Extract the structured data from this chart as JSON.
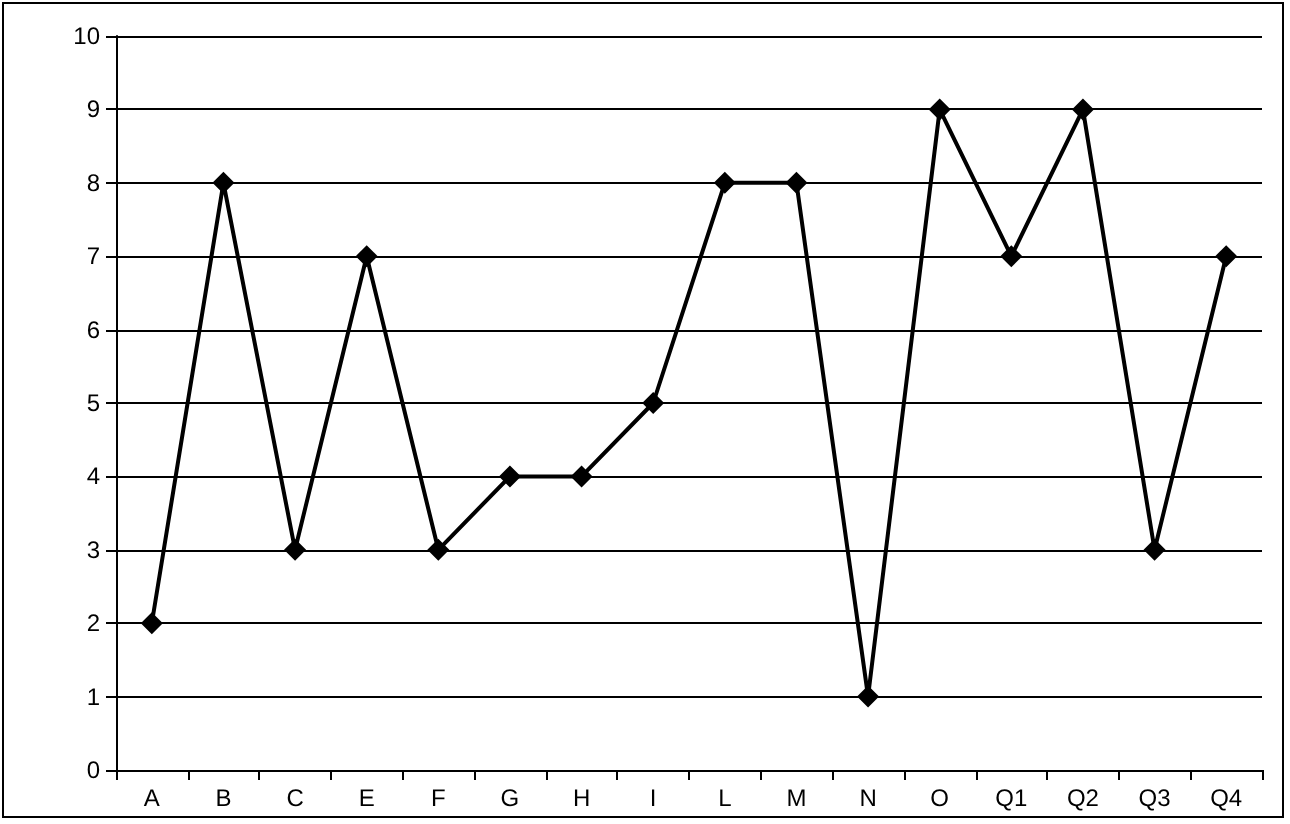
{
  "chart_data": {
    "type": "line",
    "categories": [
      "A",
      "B",
      "C",
      "E",
      "F",
      "G",
      "H",
      "I",
      "L",
      "M",
      "N",
      "O",
      "Q1",
      "Q2",
      "Q3",
      "Q4"
    ],
    "series": [
      {
        "color": "#000000",
        "values": [
          2,
          8,
          3,
          7,
          3,
          4,
          4,
          5,
          8,
          8,
          1,
          9,
          7,
          9,
          3,
          7
        ]
      }
    ],
    "ylim": [
      0,
      10
    ],
    "yticks": [
      0,
      1,
      2,
      3,
      4,
      5,
      6,
      7,
      8,
      9,
      10
    ],
    "grid": "y",
    "marker": "diamond",
    "line_style": "solid"
  }
}
